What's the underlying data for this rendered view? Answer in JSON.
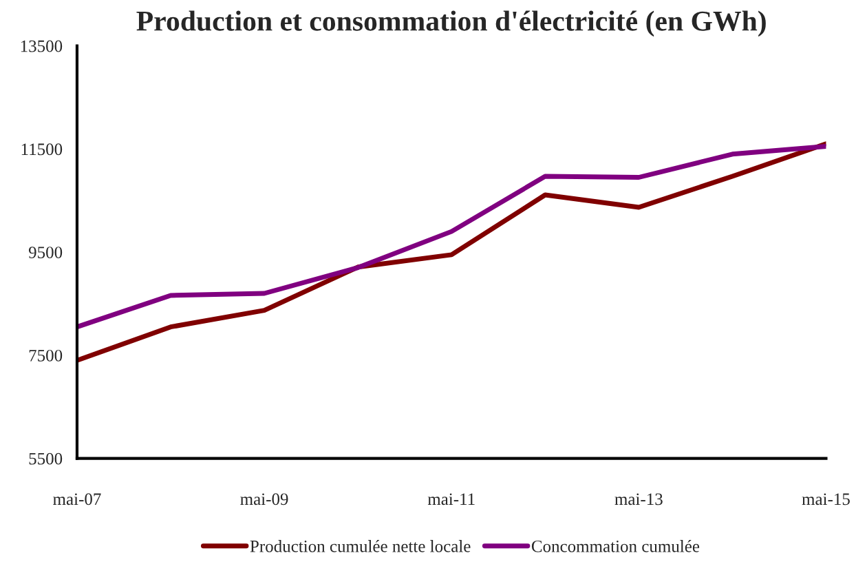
{
  "chart_data": {
    "type": "line",
    "title": "Production et consommation d'électricité (en GWh)",
    "categories": [
      "mai-07",
      null,
      "mai-09",
      null,
      "mai-11",
      null,
      "mai-13",
      null,
      "mai-15"
    ],
    "series": [
      {
        "name": "Production cumulée nette locale",
        "color": "#800000",
        "values": [
          7400,
          8050,
          8370,
          9210,
          9450,
          10610,
          10370,
          10970,
          11600
        ]
      },
      {
        "name": "Concommation cumulée",
        "color": "#800080",
        "values": [
          8050,
          8660,
          8700,
          9200,
          9900,
          10970,
          10950,
          11400,
          11550
        ]
      }
    ],
    "ylim": [
      5500,
      13500
    ],
    "yticks": [
      5500,
      7500,
      9500,
      11500,
      13500
    ],
    "grid": false,
    "legend": "bottom",
    "marker": "none",
    "line_style": "solid"
  }
}
